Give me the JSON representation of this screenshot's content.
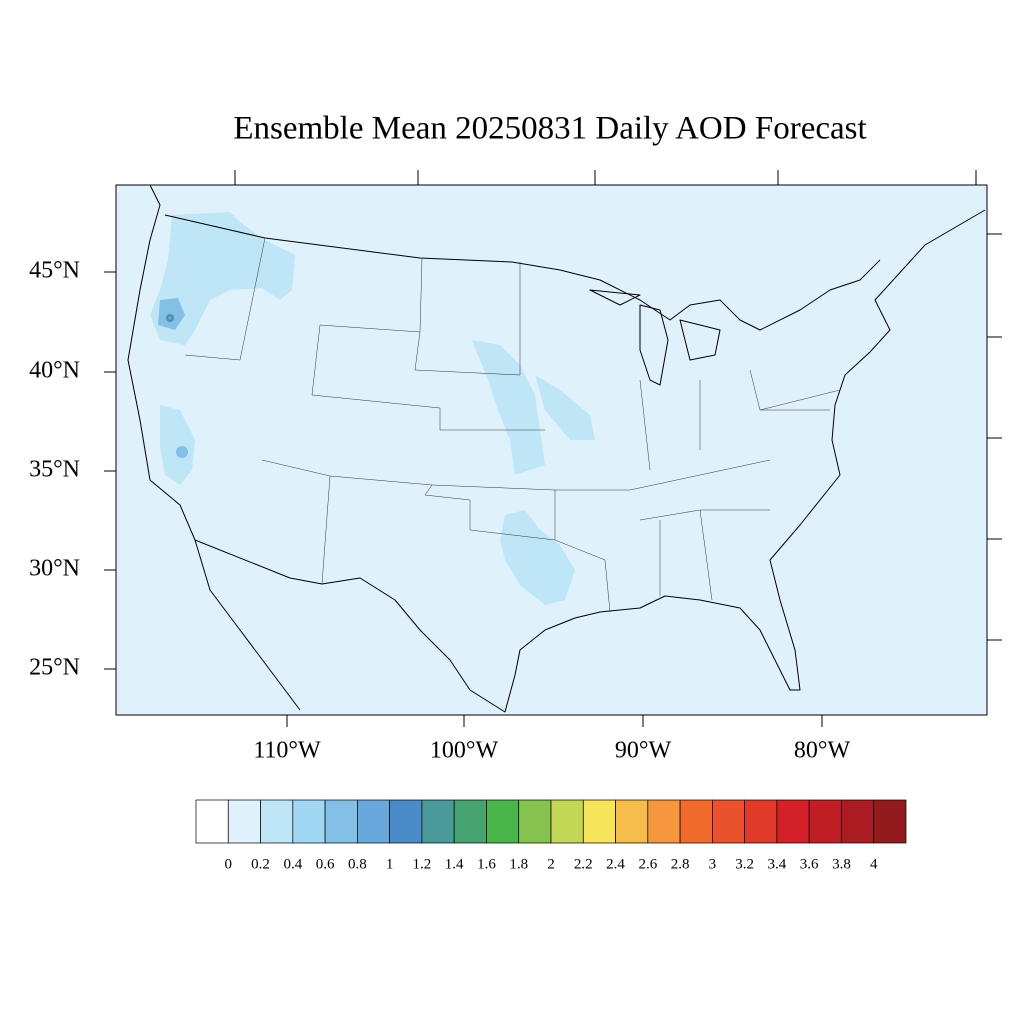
{
  "title": "Ensemble Mean 20250831 Daily AOD Forecast",
  "lat_labels": [
    "45°N",
    "40°N",
    "35°N",
    "30°N",
    "25°N"
  ],
  "lon_labels": [
    "110°W",
    "100°W",
    "90°W",
    "80°W"
  ],
  "colorbar": {
    "levels": [
      "0",
      "0.2",
      "0.4",
      "0.6",
      "0.8",
      "1",
      "1.2",
      "1.4",
      "1.6",
      "1.8",
      "2",
      "2.2",
      "2.4",
      "2.6",
      "2.8",
      "3",
      "3.2",
      "3.4",
      "3.6",
      "3.8",
      "4"
    ],
    "colors": [
      "#ffffff",
      "#dff1fb",
      "#bee6f7",
      "#a0d8f3",
      "#84bfe6",
      "#68a8dc",
      "#4a8bc9",
      "#4a9a9a",
      "#47a471",
      "#4ab54a",
      "#86c24f",
      "#c3d655",
      "#f6e55a",
      "#f7bd4a",
      "#f6963e",
      "#f26b2e",
      "#e9522c",
      "#e03a2a",
      "#d42028",
      "#bf1e25",
      "#ab1c22",
      "#931b1e"
    ]
  }
}
